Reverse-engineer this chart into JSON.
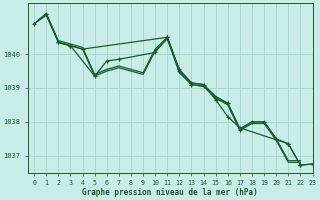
{
  "title": "Graphe pression niveau de la mer (hPa)",
  "background_color": "#c8ede8",
  "grid_color": "#a8d8d0",
  "line_color": "#1a5c2a",
  "xlim": [
    -0.5,
    23
  ],
  "ylim": [
    1036.5,
    1041.5
  ],
  "yticks": [
    1037,
    1038,
    1039,
    1040
  ],
  "xticks": [
    0,
    1,
    2,
    3,
    4,
    5,
    6,
    7,
    8,
    9,
    10,
    11,
    12,
    13,
    14,
    15,
    16,
    17,
    18,
    19,
    20,
    21,
    22,
    23
  ],
  "series1_x": [
    0,
    1,
    2,
    3,
    4,
    5,
    6,
    7,
    8,
    9,
    10,
    11,
    12,
    13,
    14,
    15,
    16,
    17,
    18,
    19,
    20,
    21,
    22
  ],
  "series1_y": [
    1040.9,
    1041.2,
    1040.4,
    1040.3,
    1040.2,
    1039.4,
    1039.55,
    1039.65,
    1039.55,
    1039.45,
    1040.15,
    1040.5,
    1039.5,
    1039.15,
    1039.1,
    1038.75,
    1038.55,
    1037.8,
    1038.0,
    1038.0,
    1037.5,
    1036.85,
    1036.85
  ],
  "series2_x": [
    0,
    1,
    2,
    3,
    4,
    5,
    6,
    7,
    8,
    9,
    10,
    11,
    12,
    13,
    14,
    15,
    16,
    17,
    18,
    19,
    20,
    21,
    22
  ],
  "series2_y": [
    1040.9,
    1041.15,
    1040.35,
    1040.25,
    1040.15,
    1039.35,
    1039.5,
    1039.6,
    1039.5,
    1039.4,
    1040.1,
    1040.45,
    1039.45,
    1039.1,
    1039.05,
    1038.7,
    1038.5,
    1037.75,
    1037.95,
    1037.95,
    1037.45,
    1036.8,
    1036.8
  ],
  "series3_x": [
    2,
    3,
    5,
    6,
    7,
    10,
    11,
    12,
    13,
    14,
    15,
    16,
    17,
    21,
    22,
    23
  ],
  "series3_y": [
    1040.35,
    1040.25,
    1039.35,
    1039.8,
    1039.85,
    1040.05,
    1040.5,
    1039.55,
    1039.15,
    1039.1,
    1038.65,
    1038.15,
    1037.82,
    1037.35,
    1036.72,
    1036.75
  ],
  "series4_x": [
    0,
    1,
    2,
    3,
    4,
    11,
    12,
    13,
    14,
    15,
    16,
    17,
    18,
    19,
    20,
    21,
    22,
    23
  ],
  "series4_y": [
    1040.9,
    1041.2,
    1040.35,
    1040.25,
    1040.15,
    1040.5,
    1039.5,
    1039.1,
    1039.05,
    1038.7,
    1038.55,
    1037.75,
    1038.0,
    1038.0,
    1037.5,
    1037.35,
    1036.72,
    1036.75
  ]
}
